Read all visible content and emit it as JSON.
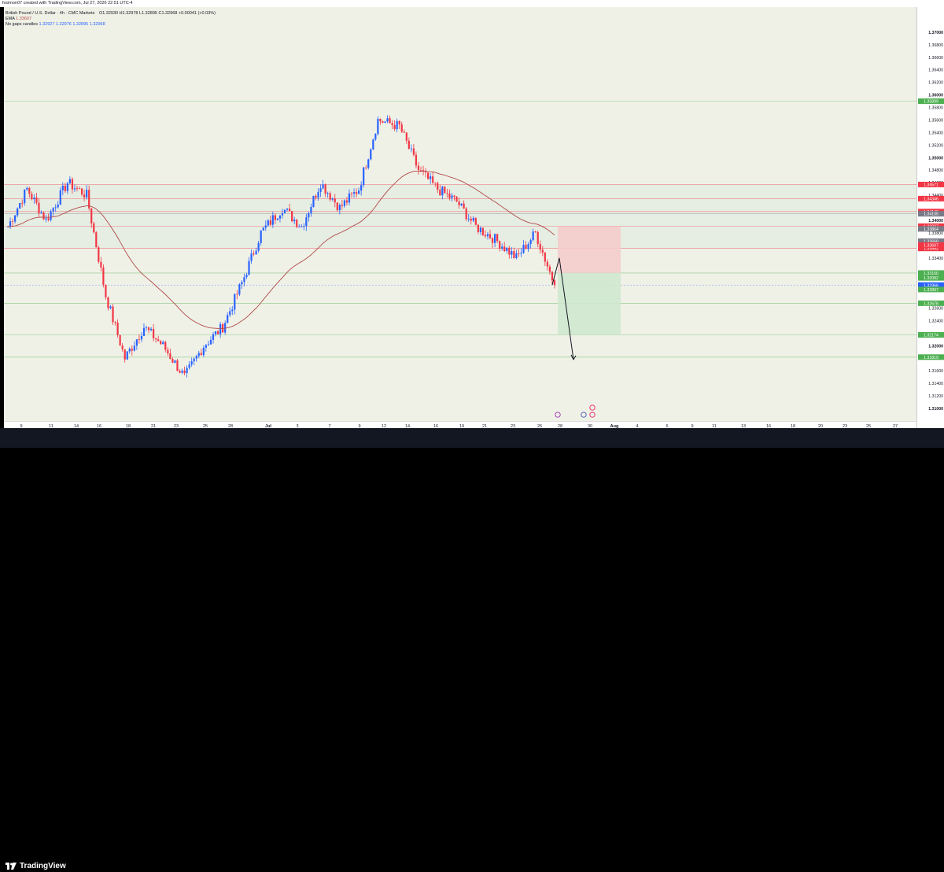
{
  "header": {
    "created_by": "fxsimon07 created with TradingView.com, Jul 27, 2026 22:51 UTC-4"
  },
  "legend": {
    "symbol": "British Pound / U.S. Dollar · 4h · CMC Markets",
    "ohlc": "O1.32930  H1.32978  L1.32895  C1.32968  +0.00041 (+0.03%)",
    "ema_label": "EMA",
    "ema_value": "1.33607",
    "ngc_label": "No gaps candles",
    "ngc_values": "1.32927  1.32976  1.32895  1.32968"
  },
  "footer": {
    "brand": "TradingView"
  },
  "colors": {
    "up": "#2962ff",
    "down": "#f23645",
    "ema": "#b04a4a",
    "bg": "#eff1e6",
    "stop_zone": "#f4cccc",
    "target_zone": "#d2ecd2"
  },
  "chart_data": {
    "type": "candlestick",
    "symbol": "GBPUSD",
    "timeframe": "4h",
    "ylim": [
      1.308,
      1.374
    ],
    "y_ticks": [
      1.37,
      1.368,
      1.366,
      1.364,
      1.362,
      1.36,
      1.358,
      1.356,
      1.354,
      1.352,
      1.35,
      1.348,
      1.346,
      1.344,
      1.34,
      1.338,
      1.334,
      1.326,
      1.324,
      1.32,
      1.316,
      1.314,
      1.312,
      1.31
    ],
    "x_ticks": [
      "9",
      "11",
      "14",
      "16",
      "18",
      "21",
      "23",
      "25",
      "28",
      "Jul",
      "3",
      "7",
      "9",
      "12",
      "14",
      "16",
      "19",
      "21",
      "23",
      "26",
      "28",
      "30",
      "Aug",
      "4",
      "6",
      "9",
      "11",
      "13",
      "16",
      "18",
      "20",
      "23",
      "25",
      "27"
    ],
    "swing_points": [
      {
        "date": "Jun 9",
        "price": 1.339
      },
      {
        "date": "Jun 11",
        "price": 1.345
      },
      {
        "date": "Jun 13",
        "price": 1.34
      },
      {
        "date": "Jun 16",
        "price": 1.346
      },
      {
        "date": "Jun 17",
        "price": 1.344
      },
      {
        "date": "Jun 18",
        "price": 1.328
      },
      {
        "date": "Jun 20",
        "price": 1.318
      },
      {
        "date": "Jun 22",
        "price": 1.323
      },
      {
        "date": "Jun 24",
        "price": 1.32
      },
      {
        "date": "Jun 25",
        "price": 1.315
      },
      {
        "date": "Jun 27",
        "price": 1.32
      },
      {
        "date": "Jun 30",
        "price": 1.323
      },
      {
        "date": "Jul 2",
        "price": 1.33
      },
      {
        "date": "Jul 3",
        "price": 1.338
      },
      {
        "date": "Jul 7",
        "price": 1.342
      },
      {
        "date": "Jul 9",
        "price": 1.339
      },
      {
        "date": "Jul 11",
        "price": 1.346
      },
      {
        "date": "Jul 12",
        "price": 1.342
      },
      {
        "date": "Jul 13",
        "price": 1.345
      },
      {
        "date": "Jul 14",
        "price": 1.356
      },
      {
        "date": "Jul 15",
        "price": 1.355
      },
      {
        "date": "Jul 17",
        "price": 1.348
      },
      {
        "date": "Jul 19",
        "price": 1.345
      },
      {
        "date": "Jul 20",
        "price": 1.343
      },
      {
        "date": "Jul 21",
        "price": 1.339
      },
      {
        "date": "Jul 23",
        "price": 1.337
      },
      {
        "date": "Jul 24",
        "price": 1.334
      },
      {
        "date": "Jul 25",
        "price": 1.338
      },
      {
        "date": "Jul 27",
        "price": 1.3297
      }
    ],
    "horizontal_levels": [
      {
        "price": 1.35899,
        "label": "1.35899",
        "color": "#4caf50"
      },
      {
        "price": 1.34571,
        "label": "1.34571",
        "color": "#f23645"
      },
      {
        "price": 1.34346,
        "label": "1.34346",
        "color": "#f23645"
      },
      {
        "price": 1.3414,
        "label": "1.34140",
        "color": "#f23645"
      },
      {
        "price": 1.34105,
        "label": "1.34105",
        "color": "#787b86"
      },
      {
        "price": 1.33907,
        "label": "1.33907",
        "color": "#f23645"
      },
      {
        "price": 1.33552,
        "label": "1.33552",
        "color": "#f23645"
      },
      {
        "price": 1.3316,
        "label": "1.33160",
        "color": "#4caf50"
      },
      {
        "price": 1.32678,
        "label": "1.32678",
        "color": "#4caf50"
      },
      {
        "price": 1.32174,
        "label": "1.32174",
        "color": "#4caf50"
      },
      {
        "price": 1.31819,
        "label": "1.31819",
        "color": "#4caf50"
      }
    ],
    "price_labels": [
      {
        "price": 1.33864,
        "label": "1.33864",
        "color": "#787b86"
      },
      {
        "price": 1.33668,
        "label": "1.33668",
        "color": "#787b86"
      },
      {
        "price": 1.33607,
        "label": "1.33607",
        "color": "#f23645"
      },
      {
        "price": 1.33082,
        "label": "1.33082",
        "color": "#4caf50"
      },
      {
        "price": 1.32968,
        "label": "1.32968",
        "color": "#2962ff"
      },
      {
        "price": 1.32966,
        "label": "1.32966",
        "color": "#2962ff"
      },
      {
        "price": 1.32897,
        "label": "1.32897",
        "color": "#4caf50"
      }
    ],
    "position": {
      "type": "short",
      "entry": 1.3316,
      "stop": 1.33907,
      "target": 1.32174
    },
    "projection_arrow": [
      {
        "price": 1.3297
      },
      {
        "price": 1.334
      },
      {
        "price": 1.3178
      }
    ]
  }
}
